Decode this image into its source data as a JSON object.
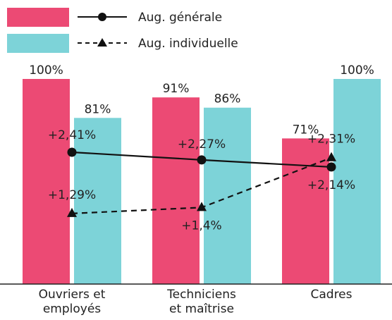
{
  "chart_data": {
    "type": "bar",
    "categories": [
      "Ouvriers et\nemployés",
      "Techniciens\net maîtrise",
      "Cadres"
    ],
    "ylim": [
      0,
      100
    ],
    "y2lim": [
      0,
      3.75
    ],
    "series": [
      {
        "name": "Aug. générale",
        "color": "#ec4a74",
        "values": [
          100,
          91,
          71
        ],
        "value_labels": [
          "100%",
          "91%",
          "71%"
        ],
        "line": {
          "axis": "y2",
          "style": "solid",
          "marker": "circle",
          "color": "#111111",
          "values": [
            2.41,
            2.27,
            2.14
          ],
          "value_labels": [
            "+2,41%",
            "+2,27%",
            "+2,14%"
          ]
        }
      },
      {
        "name": "Aug. individuelle",
        "color": "#7dd3d8",
        "values": [
          81,
          86,
          100
        ],
        "value_labels": [
          "81%",
          "86%",
          "100%"
        ],
        "line": {
          "axis": "y2",
          "style": "dashed",
          "marker": "triangle",
          "color": "#111111",
          "values": [
            1.29,
            1.4,
            2.31
          ],
          "value_labels": [
            "+1,29%",
            "+1,4%",
            "+2,31%"
          ]
        }
      }
    ]
  }
}
